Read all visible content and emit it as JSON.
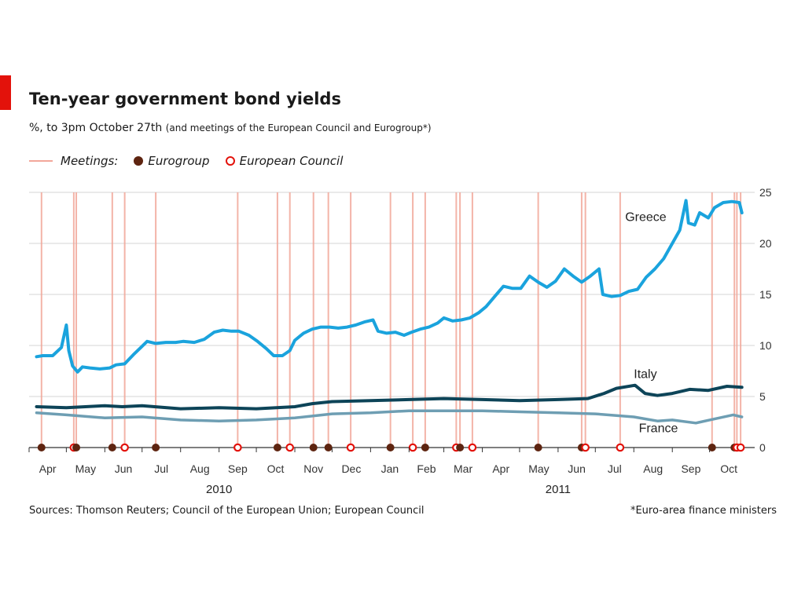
{
  "header": {
    "title": "Ten-year government bond yields",
    "subtitle_main": "%, to 3pm October 27th",
    "subtitle_small": "(and meetings of the European Council and Eurogroup*)"
  },
  "legend": {
    "meetings_label": "Meetings:",
    "eurogroup_label": "Eurogroup",
    "council_label": "European Council"
  },
  "footer": {
    "source": "Sources: Thomson Reuters; Council of the European Union; European Council",
    "footnote": "*Euro-area finance ministers"
  },
  "colors": {
    "greece": "#1aa3dd",
    "italy": "#0d4458",
    "france": "#6e9eb3",
    "meeting_line": "#f2a79a",
    "eurogroup": "#5e2410",
    "european_council": "#e3120b",
    "grid": "#d4d4d4",
    "accent": "#e3120b"
  },
  "chart_data": {
    "type": "line",
    "title": "Ten-year government bond yields",
    "ylabel": "%",
    "ylim": [
      0,
      25
    ],
    "yticks": [
      0,
      5,
      10,
      15,
      20,
      25
    ],
    "xlim": [
      "2010-04-01",
      "2011-10-31"
    ],
    "month_labels": [
      "Apr",
      "May",
      "Jun",
      "Jul",
      "Aug",
      "Sep",
      "Oct",
      "Nov",
      "Dec",
      "Jan",
      "Feb",
      "Mar",
      "Apr",
      "May",
      "Jun",
      "Jul",
      "Aug",
      "Sep",
      "Oct"
    ],
    "year_labels": [
      {
        "label": "2010",
        "center": "2010-09-01"
      },
      {
        "label": "2011",
        "center": "2011-06-01"
      }
    ],
    "grid": true,
    "y_axis_side": "right",
    "legend_position": "top-left",
    "series": [
      {
        "name": "Greece",
        "points": [
          [
            "2010-04-07",
            8.9
          ],
          [
            "2010-04-12",
            9.0
          ],
          [
            "2010-04-20",
            9.0
          ],
          [
            "2010-04-27",
            9.8
          ],
          [
            "2010-05-01",
            12.0
          ],
          [
            "2010-05-03",
            9.5
          ],
          [
            "2010-05-06",
            8.0
          ],
          [
            "2010-05-10",
            7.4
          ],
          [
            "2010-05-14",
            7.9
          ],
          [
            "2010-05-20",
            7.8
          ],
          [
            "2010-05-28",
            7.7
          ],
          [
            "2010-06-05",
            7.8
          ],
          [
            "2010-06-10",
            8.1
          ],
          [
            "2010-06-17",
            8.2
          ],
          [
            "2010-06-24",
            9.1
          ],
          [
            "2010-06-30",
            9.8
          ],
          [
            "2010-07-05",
            10.4
          ],
          [
            "2010-07-12",
            10.2
          ],
          [
            "2010-07-20",
            10.3
          ],
          [
            "2010-07-28",
            10.3
          ],
          [
            "2010-08-03",
            10.4
          ],
          [
            "2010-08-12",
            10.3
          ],
          [
            "2010-08-20",
            10.6
          ],
          [
            "2010-08-28",
            11.3
          ],
          [
            "2010-09-04",
            11.5
          ],
          [
            "2010-09-11",
            11.4
          ],
          [
            "2010-09-17",
            11.4
          ],
          [
            "2010-09-25",
            11.0
          ],
          [
            "2010-10-02",
            10.4
          ],
          [
            "2010-10-09",
            9.7
          ],
          [
            "2010-10-15",
            9.0
          ],
          [
            "2010-10-22",
            9.0
          ],
          [
            "2010-10-28",
            9.5
          ],
          [
            "2010-11-01",
            10.5
          ],
          [
            "2010-11-08",
            11.2
          ],
          [
            "2010-11-15",
            11.6
          ],
          [
            "2010-11-22",
            11.8
          ],
          [
            "2010-11-29",
            11.8
          ],
          [
            "2010-12-06",
            11.7
          ],
          [
            "2010-12-13",
            11.8
          ],
          [
            "2010-12-20",
            12.0
          ],
          [
            "2010-12-27",
            12.3
          ],
          [
            "2011-01-03",
            12.5
          ],
          [
            "2011-01-07",
            11.4
          ],
          [
            "2011-01-14",
            11.2
          ],
          [
            "2011-01-21",
            11.3
          ],
          [
            "2011-01-28",
            11.0
          ],
          [
            "2011-02-03",
            11.3
          ],
          [
            "2011-02-10",
            11.6
          ],
          [
            "2011-02-17",
            11.8
          ],
          [
            "2011-02-24",
            12.2
          ],
          [
            "2011-03-01",
            12.7
          ],
          [
            "2011-03-08",
            12.4
          ],
          [
            "2011-03-15",
            12.5
          ],
          [
            "2011-03-22",
            12.7
          ],
          [
            "2011-03-29",
            13.2
          ],
          [
            "2011-04-04",
            13.8
          ],
          [
            "2011-04-11",
            14.8
          ],
          [
            "2011-04-18",
            15.8
          ],
          [
            "2011-04-25",
            15.6
          ],
          [
            "2011-05-02",
            15.6
          ],
          [
            "2011-05-09",
            16.8
          ],
          [
            "2011-05-16",
            16.2
          ],
          [
            "2011-05-23",
            15.7
          ],
          [
            "2011-05-30",
            16.3
          ],
          [
            "2011-06-06",
            17.5
          ],
          [
            "2011-06-13",
            16.8
          ],
          [
            "2011-06-20",
            16.2
          ],
          [
            "2011-06-27",
            16.8
          ],
          [
            "2011-07-04",
            17.5
          ],
          [
            "2011-07-07",
            15.0
          ],
          [
            "2011-07-14",
            14.8
          ],
          [
            "2011-07-21",
            14.9
          ],
          [
            "2011-07-28",
            15.3
          ],
          [
            "2011-08-04",
            15.5
          ],
          [
            "2011-08-11",
            16.7
          ],
          [
            "2011-08-18",
            17.5
          ],
          [
            "2011-08-25",
            18.5
          ],
          [
            "2011-09-01",
            20.0
          ],
          [
            "2011-09-07",
            21.3
          ],
          [
            "2011-09-12",
            24.2
          ],
          [
            "2011-09-14",
            22.0
          ],
          [
            "2011-09-19",
            21.8
          ],
          [
            "2011-09-23",
            23.0
          ],
          [
            "2011-09-30",
            22.5
          ],
          [
            "2011-10-05",
            23.5
          ],
          [
            "2011-10-12",
            24.0
          ],
          [
            "2011-10-19",
            24.1
          ],
          [
            "2011-10-25",
            24.0
          ],
          [
            "2011-10-27",
            23.0
          ]
        ]
      },
      {
        "name": "Italy",
        "points": [
          [
            "2010-04-07",
            4.0
          ],
          [
            "2010-05-01",
            3.9
          ],
          [
            "2010-06-01",
            4.1
          ],
          [
            "2010-06-15",
            4.0
          ],
          [
            "2010-07-01",
            4.1
          ],
          [
            "2010-08-01",
            3.8
          ],
          [
            "2010-09-01",
            3.9
          ],
          [
            "2010-10-01",
            3.8
          ],
          [
            "2010-11-01",
            4.0
          ],
          [
            "2010-11-15",
            4.3
          ],
          [
            "2010-12-01",
            4.5
          ],
          [
            "2011-01-01",
            4.6
          ],
          [
            "2011-02-01",
            4.7
          ],
          [
            "2011-03-01",
            4.8
          ],
          [
            "2011-04-01",
            4.7
          ],
          [
            "2011-05-01",
            4.6
          ],
          [
            "2011-06-01",
            4.7
          ],
          [
            "2011-06-25",
            4.8
          ],
          [
            "2011-07-08",
            5.3
          ],
          [
            "2011-07-18",
            5.8
          ],
          [
            "2011-08-02",
            6.1
          ],
          [
            "2011-08-10",
            5.3
          ],
          [
            "2011-08-20",
            5.1
          ],
          [
            "2011-09-01",
            5.3
          ],
          [
            "2011-09-15",
            5.7
          ],
          [
            "2011-09-30",
            5.6
          ],
          [
            "2011-10-15",
            6.0
          ],
          [
            "2011-10-27",
            5.9
          ]
        ]
      },
      {
        "name": "France",
        "points": [
          [
            "2010-04-07",
            3.4
          ],
          [
            "2010-05-01",
            3.2
          ],
          [
            "2010-06-01",
            2.9
          ],
          [
            "2010-07-01",
            3.0
          ],
          [
            "2010-08-01",
            2.7
          ],
          [
            "2010-09-01",
            2.6
          ],
          [
            "2010-10-01",
            2.7
          ],
          [
            "2010-11-01",
            2.9
          ],
          [
            "2010-12-01",
            3.3
          ],
          [
            "2011-01-01",
            3.4
          ],
          [
            "2011-02-01",
            3.6
          ],
          [
            "2011-03-01",
            3.6
          ],
          [
            "2011-04-01",
            3.6
          ],
          [
            "2011-05-01",
            3.5
          ],
          [
            "2011-06-01",
            3.4
          ],
          [
            "2011-07-01",
            3.3
          ],
          [
            "2011-08-01",
            3.0
          ],
          [
            "2011-08-20",
            2.6
          ],
          [
            "2011-09-01",
            2.7
          ],
          [
            "2011-09-20",
            2.4
          ],
          [
            "2011-10-01",
            2.7
          ],
          [
            "2011-10-20",
            3.2
          ],
          [
            "2011-10-27",
            3.0
          ]
        ]
      }
    ],
    "meetings": [
      {
        "date": "2010-04-11",
        "type": "eurogroup"
      },
      {
        "date": "2010-05-07",
        "type": "european_council"
      },
      {
        "date": "2010-05-09",
        "type": "eurogroup"
      },
      {
        "date": "2010-06-07",
        "type": "eurogroup"
      },
      {
        "date": "2010-06-17",
        "type": "european_council"
      },
      {
        "date": "2010-07-12",
        "type": "eurogroup"
      },
      {
        "date": "2010-09-16",
        "type": "european_council"
      },
      {
        "date": "2010-10-18",
        "type": "eurogroup"
      },
      {
        "date": "2010-10-28",
        "type": "european_council"
      },
      {
        "date": "2010-11-16",
        "type": "eurogroup"
      },
      {
        "date": "2010-11-28",
        "type": "eurogroup"
      },
      {
        "date": "2010-12-16",
        "type": "european_council"
      },
      {
        "date": "2011-01-17",
        "type": "eurogroup"
      },
      {
        "date": "2011-02-04",
        "type": "european_council"
      },
      {
        "date": "2011-02-14",
        "type": "eurogroup"
      },
      {
        "date": "2011-03-11",
        "type": "european_council"
      },
      {
        "date": "2011-03-14",
        "type": "eurogroup"
      },
      {
        "date": "2011-03-24",
        "type": "european_council"
      },
      {
        "date": "2011-05-16",
        "type": "eurogroup"
      },
      {
        "date": "2011-06-20",
        "type": "eurogroup"
      },
      {
        "date": "2011-06-23",
        "type": "european_council"
      },
      {
        "date": "2011-07-21",
        "type": "european_council"
      },
      {
        "date": "2011-10-03",
        "type": "eurogroup"
      },
      {
        "date": "2011-10-21",
        "type": "eurogroup"
      },
      {
        "date": "2011-10-23",
        "type": "european_council"
      },
      {
        "date": "2011-10-26",
        "type": "european_council"
      }
    ]
  }
}
